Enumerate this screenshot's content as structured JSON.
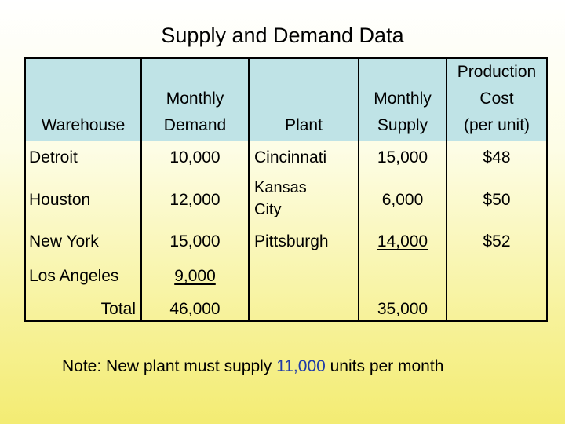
{
  "title": "Supply and Demand Data",
  "headers": {
    "warehouse": "Warehouse",
    "monthly_demand_1": "Monthly",
    "monthly_demand_2": "Demand",
    "plant": "Plant",
    "monthly_supply_1": "Monthly",
    "monthly_supply_2": "Supply",
    "production_cost_1": "Production",
    "production_cost_2": "Cost",
    "production_cost_3": "(per unit)"
  },
  "rows": [
    {
      "warehouse": "Detroit",
      "demand": "10,000",
      "plant": "Cincinnati",
      "supply": "15,000",
      "cost": "$48"
    },
    {
      "warehouse": "Houston",
      "demand": "12,000",
      "plant": "Kansas City",
      "supply": "6,000",
      "cost": "$50"
    },
    {
      "warehouse": "New York",
      "demand": "15,000",
      "plant": "Pittsburgh",
      "supply": "14,000",
      "cost": "$52"
    },
    {
      "warehouse": "Los Angeles",
      "demand": "9,000",
      "plant": "",
      "supply": "",
      "cost": ""
    }
  ],
  "totals": {
    "label": "Total",
    "demand": "46,000",
    "supply": "35,000"
  },
  "note": {
    "prefix": "Note:  New plant must supply ",
    "value": "11,000",
    "suffix": " units per month"
  },
  "colors": {
    "header_bg": "#bfe3e6",
    "highlight": "#1f3aa8"
  }
}
